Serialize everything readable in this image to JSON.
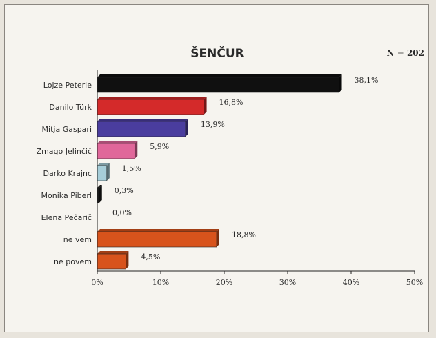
{
  "chart_data": {
    "type": "bar",
    "orientation": "horizontal",
    "title": "ŠENČUR",
    "sample_label": "N = 202",
    "categories": [
      "Lojze Peterle",
      "Danilo Türk",
      "Mitja Gaspari",
      "Zmago Jelinčič",
      "Darko Krajnc",
      "Monika Piberl",
      "Elena Pečarič",
      "ne vem",
      "ne povem"
    ],
    "values": [
      38.1,
      16.8,
      13.9,
      5.9,
      1.5,
      0.3,
      0.0,
      18.8,
      4.5
    ],
    "value_labels": [
      "38,1%",
      "16,8%",
      "13,9%",
      "5,9%",
      "1,5%",
      "0,3%",
      "0,0%",
      "18,8%",
      "4,5%"
    ],
    "colors": [
      "#101010",
      "#d42a2a",
      "#4a3d9e",
      "#e0679a",
      "#a6cdd8",
      "#1a1a1a",
      "#1a1a1a",
      "#d8531c",
      "#d8531c"
    ],
    "xlim": [
      0,
      50
    ],
    "xticks": [
      0,
      10,
      20,
      30,
      40,
      50
    ],
    "xtick_labels": [
      "0%",
      "10%",
      "20%",
      "30%",
      "40%",
      "50%"
    ],
    "grid": false,
    "legend": "none"
  }
}
